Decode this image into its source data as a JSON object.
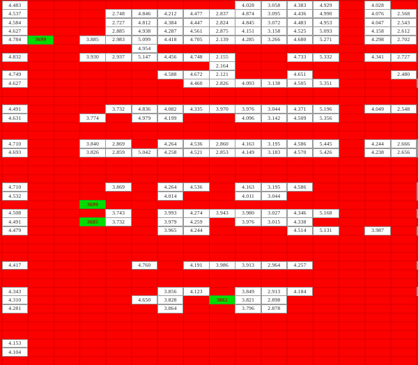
{
  "grid": {
    "description": "spreadsheet grid of numeric cells on red background",
    "columns": 16,
    "rows": 42,
    "colors": {
      "background": "#fb0100",
      "gridline": "#c80000",
      "cell_background": "#ffffff",
      "cell_border": "#9a9a9a",
      "cell_text": "#1c1c24",
      "highlight_background": "#00dc00",
      "highlight_text": "#8f2000"
    },
    "cells": [
      [
        1,
        1,
        "4.483"
      ],
      [
        1,
        10,
        "4.028"
      ],
      [
        1,
        11,
        "3.058"
      ],
      [
        1,
        12,
        "4.383"
      ],
      [
        1,
        13,
        "4.929"
      ],
      [
        1,
        15,
        "4.028"
      ],
      [
        2,
        1,
        "4.537"
      ],
      [
        2,
        5,
        "2.748"
      ],
      [
        2,
        6,
        "4.846"
      ],
      [
        2,
        7,
        "4.212"
      ],
      [
        2,
        8,
        "4.477"
      ],
      [
        2,
        9,
        "2.837"
      ],
      [
        2,
        10,
        "4.874"
      ],
      [
        2,
        11,
        "3.095"
      ],
      [
        2,
        12,
        "4.436"
      ],
      [
        2,
        13,
        "4.990"
      ],
      [
        2,
        15,
        "4.076"
      ],
      [
        2,
        16,
        "2.568"
      ],
      [
        3,
        1,
        "4.584"
      ],
      [
        3,
        5,
        "2.727"
      ],
      [
        3,
        6,
        "4.812"
      ],
      [
        3,
        7,
        "4.384"
      ],
      [
        3,
        8,
        "4.447"
      ],
      [
        3,
        9,
        "2.824"
      ],
      [
        3,
        10,
        "4.845"
      ],
      [
        3,
        11,
        "3.072"
      ],
      [
        3,
        12,
        "4.483"
      ],
      [
        3,
        13,
        "4.953"
      ],
      [
        3,
        15,
        "4.047"
      ],
      [
        3,
        16,
        "2.543"
      ],
      [
        4,
        1,
        "4.627"
      ],
      [
        4,
        5,
        "2.885"
      ],
      [
        4,
        6,
        "4.938"
      ],
      [
        4,
        7,
        "4.287"
      ],
      [
        4,
        8,
        "4.561"
      ],
      [
        4,
        9,
        "2.875"
      ],
      [
        4,
        10,
        "4.151"
      ],
      [
        4,
        11,
        "3.158"
      ],
      [
        4,
        12,
        "4.525"
      ],
      [
        4,
        13,
        "5.093"
      ],
      [
        4,
        15,
        "4.158"
      ],
      [
        4,
        16,
        "2.612"
      ],
      [
        5,
        1,
        "4.784"
      ],
      [
        5,
        2,
        "3699",
        "h"
      ],
      [
        5,
        4,
        "3.885"
      ],
      [
        5,
        5,
        "2.983"
      ],
      [
        5,
        6,
        "5.099"
      ],
      [
        5,
        7,
        "4.418"
      ],
      [
        5,
        8,
        "4.705"
      ],
      [
        5,
        9,
        "2.139"
      ],
      [
        5,
        10,
        "4.285"
      ],
      [
        5,
        11,
        "3.266"
      ],
      [
        5,
        12,
        "4.680"
      ],
      [
        5,
        13,
        "5.271"
      ],
      [
        5,
        15,
        "4.298"
      ],
      [
        5,
        16,
        "2.702"
      ],
      [
        6,
        6,
        "4.954"
      ],
      [
        7,
        1,
        "4.832"
      ],
      [
        7,
        4,
        "3.930"
      ],
      [
        7,
        5,
        "2.937"
      ],
      [
        7,
        6,
        "5.147"
      ],
      [
        7,
        7,
        "4.456"
      ],
      [
        7,
        8,
        "4.748"
      ],
      [
        7,
        9,
        "2.155"
      ],
      [
        7,
        12,
        "4.733"
      ],
      [
        7,
        13,
        "5.332"
      ],
      [
        7,
        15,
        "4.341"
      ],
      [
        7,
        16,
        "2.727"
      ],
      [
        8,
        9,
        "2.164"
      ],
      [
        9,
        1,
        "4.749"
      ],
      [
        9,
        7,
        "4.588"
      ],
      [
        9,
        8,
        "4.672"
      ],
      [
        9,
        9,
        "2.121"
      ],
      [
        9,
        12,
        "4.651"
      ],
      [
        9,
        16,
        "2.480"
      ],
      [
        10,
        1,
        "4.627"
      ],
      [
        10,
        8,
        "4.460"
      ],
      [
        10,
        9,
        "2.826"
      ],
      [
        10,
        10,
        "4.093"
      ],
      [
        10,
        11,
        "3.138"
      ],
      [
        10,
        12,
        "4.505"
      ],
      [
        10,
        13,
        "5.351"
      ],
      [
        13,
        1,
        "4.491"
      ],
      [
        13,
        5,
        "3.732"
      ],
      [
        13,
        6,
        "4.836"
      ],
      [
        13,
        7,
        "4.082"
      ],
      [
        13,
        8,
        "4.335"
      ],
      [
        13,
        9,
        "3.970"
      ],
      [
        13,
        10,
        "3.976"
      ],
      [
        13,
        11,
        "3.044"
      ],
      [
        13,
        12,
        "4.371"
      ],
      [
        13,
        13,
        "5.196"
      ],
      [
        13,
        15,
        "4.049"
      ],
      [
        13,
        16,
        "2.548"
      ],
      [
        14,
        1,
        "4.631"
      ],
      [
        14,
        4,
        "3.774"
      ],
      [
        14,
        6,
        "4.979"
      ],
      [
        14,
        7,
        "4.199"
      ],
      [
        14,
        10,
        "4.096"
      ],
      [
        14,
        11,
        "3.142"
      ],
      [
        14,
        12,
        "4.509"
      ],
      [
        14,
        13,
        "5.356"
      ],
      [
        17,
        1,
        "4.710"
      ],
      [
        17,
        4,
        "3.840"
      ],
      [
        17,
        5,
        "2.869"
      ],
      [
        17,
        7,
        "4.264"
      ],
      [
        17,
        8,
        "4.536"
      ],
      [
        17,
        9,
        "2.860"
      ],
      [
        17,
        10,
        "4.163"
      ],
      [
        17,
        11,
        "3.195"
      ],
      [
        17,
        12,
        "4.586"
      ],
      [
        17,
        13,
        "5.445"
      ],
      [
        17,
        15,
        "4.244"
      ],
      [
        17,
        16,
        "2.666"
      ],
      [
        18,
        1,
        "4.693"
      ],
      [
        18,
        4,
        "3.826"
      ],
      [
        18,
        5,
        "2.859"
      ],
      [
        18,
        6,
        "5.042"
      ],
      [
        18,
        7,
        "4.258"
      ],
      [
        18,
        8,
        "4.521"
      ],
      [
        18,
        9,
        "2.853"
      ],
      [
        18,
        10,
        "4.149"
      ],
      [
        18,
        11,
        "3.183"
      ],
      [
        18,
        12,
        "4.570"
      ],
      [
        18,
        13,
        "5.426"
      ],
      [
        18,
        15,
        "4.238"
      ],
      [
        18,
        16,
        "2.656"
      ],
      [
        22,
        1,
        "4.710"
      ],
      [
        22,
        5,
        "3.869"
      ],
      [
        22,
        7,
        "4.264"
      ],
      [
        22,
        8,
        "4.536"
      ],
      [
        22,
        10,
        "4.163"
      ],
      [
        22,
        11,
        "3.195"
      ],
      [
        22,
        12,
        "4.586"
      ],
      [
        23,
        1,
        "4.532"
      ],
      [
        23,
        7,
        "4.014"
      ],
      [
        23,
        10,
        "4.011"
      ],
      [
        23,
        11,
        "3.044"
      ],
      [
        24,
        4,
        "3699",
        "h"
      ],
      [
        25,
        1,
        "4.508"
      ],
      [
        25,
        5,
        "3.743"
      ],
      [
        25,
        7,
        "3.993"
      ],
      [
        25,
        8,
        "4.274"
      ],
      [
        25,
        9,
        "3.943"
      ],
      [
        25,
        10,
        "3.980"
      ],
      [
        25,
        11,
        "3.027"
      ],
      [
        25,
        12,
        "4.346"
      ],
      [
        25,
        13,
        "5.168"
      ],
      [
        26,
        1,
        "4.491"
      ],
      [
        26,
        4,
        "3685",
        "h"
      ],
      [
        26,
        5,
        "3.732"
      ],
      [
        26,
        7,
        "3.979"
      ],
      [
        26,
        8,
        "4.259"
      ],
      [
        26,
        10,
        "3.976"
      ],
      [
        26,
        11,
        "3.015"
      ],
      [
        26,
        12,
        "4.338"
      ],
      [
        27,
        1,
        "4.479"
      ],
      [
        27,
        7,
        "3.965"
      ],
      [
        27,
        8,
        "4.244"
      ],
      [
        27,
        12,
        "4.514"
      ],
      [
        27,
        13,
        "5.131"
      ],
      [
        27,
        15,
        "3.987"
      ],
      [
        31,
        1,
        "4.417"
      ],
      [
        31,
        6,
        "4.760"
      ],
      [
        31,
        8,
        "4.191"
      ],
      [
        31,
        9,
        "3.986"
      ],
      [
        31,
        10,
        "3.913"
      ],
      [
        31,
        11,
        "2.964"
      ],
      [
        31,
        12,
        "4.257"
      ],
      [
        34,
        1,
        "4.343"
      ],
      [
        34,
        7,
        "3.856"
      ],
      [
        34,
        8,
        "4.123"
      ],
      [
        34,
        10,
        "3.849"
      ],
      [
        34,
        11,
        "2.913"
      ],
      [
        34,
        12,
        "4.184"
      ],
      [
        35,
        1,
        "4.310"
      ],
      [
        35,
        6,
        "4.650"
      ],
      [
        35,
        7,
        "3.828"
      ],
      [
        35,
        9,
        "3862",
        "h"
      ],
      [
        35,
        10,
        "3.821"
      ],
      [
        35,
        11,
        "2.898"
      ],
      [
        36,
        1,
        "4.281"
      ],
      [
        36,
        7,
        "3.864"
      ],
      [
        36,
        10,
        "3.796"
      ],
      [
        36,
        11,
        "2.878"
      ],
      [
        40,
        1,
        "4.153"
      ],
      [
        41,
        1,
        "4.104"
      ]
    ],
    "right_edge_partial_cell_rows": [
      10,
      17,
      18,
      22,
      23,
      25,
      27,
      31,
      34
    ]
  }
}
